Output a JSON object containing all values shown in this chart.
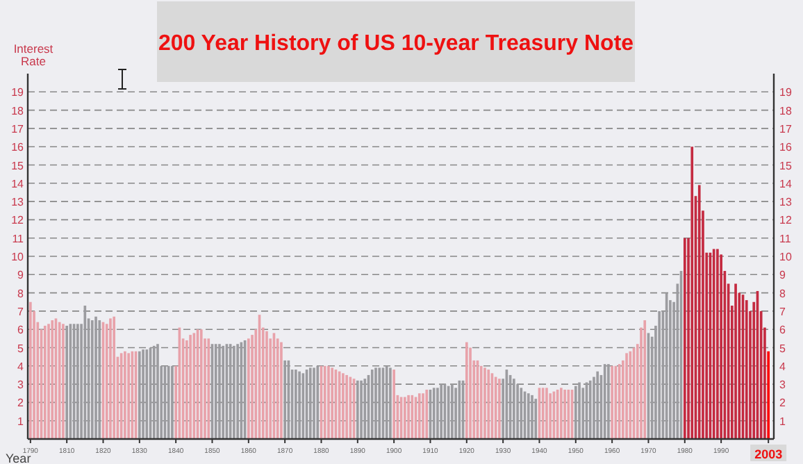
{
  "chart_data": {
    "type": "bar",
    "title": "200 Year History of US 10-year Treasury Note",
    "ylabel": "Interest Rate",
    "xlabel": "Year",
    "categories": [
      "1790",
      null,
      null,
      null,
      null,
      null,
      null,
      null,
      null,
      null,
      "1810",
      null,
      null,
      null,
      null,
      null,
      null,
      null,
      null,
      null,
      "1820",
      null,
      null,
      null,
      null,
      null,
      null,
      null,
      null,
      null,
      "1830",
      null,
      null,
      null,
      null,
      null,
      null,
      null,
      null,
      null,
      "1840",
      null,
      null,
      null,
      null,
      null,
      null,
      null,
      null,
      null,
      "1850",
      null,
      null,
      null,
      null,
      null,
      null,
      null,
      null,
      null,
      "1860",
      null,
      null,
      null,
      null,
      null,
      null,
      null,
      null,
      null,
      "1870",
      null,
      null,
      null,
      null,
      null,
      null,
      null,
      null,
      null,
      "1880",
      null,
      null,
      null,
      null,
      null,
      null,
      null,
      null,
      null,
      "1890",
      null,
      null,
      null,
      null,
      null,
      null,
      null,
      null,
      null,
      "1900",
      null,
      null,
      null,
      null,
      null,
      null,
      null,
      null,
      null,
      "1910",
      null,
      null,
      null,
      null,
      null,
      null,
      null,
      null,
      null,
      "1920",
      null,
      null,
      null,
      null,
      null,
      null,
      null,
      null,
      null,
      "1930",
      null,
      null,
      null,
      null,
      null,
      null,
      null,
      null,
      null,
      "1940",
      null,
      null,
      null,
      null,
      null,
      null,
      null,
      null,
      null,
      "1950",
      null,
      null,
      null,
      null,
      null,
      null,
      null,
      null,
      null,
      "1960",
      null,
      null,
      null,
      null,
      null,
      null,
      null,
      null,
      null,
      "1970",
      null,
      null,
      null,
      null,
      null,
      null,
      null,
      null,
      null,
      "1980",
      null,
      null,
      null,
      null,
      null,
      null,
      null,
      null,
      null,
      "1990",
      null,
      null,
      null,
      null,
      null,
      null,
      null,
      null,
      null,
      null,
      null,
      null,
      "2003"
    ],
    "values": [
      7.5,
      7.0,
      6.4,
      6.0,
      6.2,
      6.3,
      6.5,
      6.6,
      6.4,
      6.3,
      6.2,
      6.3,
      6.3,
      6.3,
      6.3,
      7.3,
      6.6,
      6.5,
      6.7,
      6.5,
      6.4,
      6.3,
      6.6,
      6.7,
      4.5,
      4.7,
      4.8,
      4.7,
      4.8,
      4.8,
      4.8,
      4.9,
      4.9,
      5.0,
      5.1,
      5.2,
      4.0,
      4.0,
      4.0,
      4.0,
      4.0,
      6.1,
      5.5,
      5.4,
      5.7,
      5.8,
      6.0,
      6.0,
      5.5,
      5.5,
      5.2,
      5.2,
      5.2,
      5.1,
      5.2,
      5.2,
      5.1,
      5.2,
      5.3,
      5.4,
      5.5,
      5.7,
      6.0,
      6.8,
      6.1,
      5.9,
      5.5,
      5.8,
      5.5,
      5.3,
      4.3,
      4.3,
      3.8,
      3.8,
      3.7,
      3.6,
      3.8,
      3.9,
      3.9,
      4.0,
      4.0,
      4.0,
      4.0,
      3.9,
      3.8,
      3.7,
      3.6,
      3.5,
      3.4,
      3.3,
      3.2,
      3.2,
      3.3,
      3.5,
      3.8,
      3.9,
      3.9,
      3.9,
      4.0,
      3.9,
      3.8,
      2.4,
      2.3,
      2.3,
      2.4,
      2.4,
      2.3,
      2.5,
      2.5,
      2.7,
      2.7,
      2.8,
      2.8,
      3.0,
      3.0,
      2.9,
      3.0,
      2.8,
      3.2,
      3.2,
      5.3,
      5.0,
      4.3,
      4.3,
      4.0,
      3.9,
      3.8,
      3.6,
      3.4,
      3.3,
      3.3,
      3.8,
      3.5,
      3.3,
      3.0,
      2.8,
      2.6,
      2.5,
      2.4,
      2.2,
      2.8,
      2.8,
      2.8,
      2.5,
      2.6,
      2.7,
      2.8,
      2.7,
      2.7,
      2.7,
      2.9,
      3.1,
      2.8,
      3.1,
      3.2,
      3.4,
      3.7,
      3.5,
      4.1,
      4.1,
      4.0,
      4.0,
      4.1,
      4.3,
      4.7,
      4.8,
      5.0,
      5.2,
      6.1,
      6.5,
      5.8,
      5.6,
      6.2,
      7.0,
      7.0,
      8.0,
      7.6,
      7.5,
      8.5,
      9.2,
      11.0,
      11.0,
      16.0,
      13.3,
      13.9,
      12.5,
      10.2,
      10.2,
      10.4,
      10.4,
      10.1,
      9.2,
      8.5,
      7.3,
      8.5,
      8.0,
      7.9,
      7.6,
      7.0,
      7.5,
      8.1,
      7.0,
      6.1,
      4.8
    ],
    "colors": [
      "#e8a2aa",
      "#e8a2aa",
      "#e8a2aa",
      "#e8a2aa",
      "#e8a2aa",
      "#e8a2aa",
      "#e8a2aa",
      "#e8a2aa",
      "#e8a2aa",
      "#e8a2aa",
      "#9c9ca0",
      "#9c9ca0",
      "#9c9ca0",
      "#9c9ca0",
      "#9c9ca0",
      "#9c9ca0",
      "#9c9ca0",
      "#9c9ca0",
      "#9c9ca0",
      "#9c9ca0",
      "#e8a2aa",
      "#e8a2aa",
      "#e8a2aa",
      "#e8a2aa",
      "#e8a2aa",
      "#e8a2aa",
      "#e8a2aa",
      "#e8a2aa",
      "#e8a2aa",
      "#e8a2aa",
      "#9c9ca0",
      "#9c9ca0",
      "#9c9ca0",
      "#9c9ca0",
      "#9c9ca0",
      "#9c9ca0",
      "#9c9ca0",
      "#9c9ca0",
      "#9c9ca0",
      "#9c9ca0",
      "#e8a2aa",
      "#e8a2aa",
      "#e8a2aa",
      "#e8a2aa",
      "#e8a2aa",
      "#e8a2aa",
      "#e8a2aa",
      "#e8a2aa",
      "#e8a2aa",
      "#e8a2aa",
      "#9c9ca0",
      "#9c9ca0",
      "#9c9ca0",
      "#9c9ca0",
      "#9c9ca0",
      "#9c9ca0",
      "#9c9ca0",
      "#9c9ca0",
      "#9c9ca0",
      "#9c9ca0",
      "#e8a2aa",
      "#e8a2aa",
      "#e8a2aa",
      "#e8a2aa",
      "#e8a2aa",
      "#e8a2aa",
      "#e8a2aa",
      "#e8a2aa",
      "#e8a2aa",
      "#e8a2aa",
      "#9c9ca0",
      "#9c9ca0",
      "#9c9ca0",
      "#9c9ca0",
      "#9c9ca0",
      "#9c9ca0",
      "#9c9ca0",
      "#9c9ca0",
      "#9c9ca0",
      "#9c9ca0",
      "#e8a2aa",
      "#e8a2aa",
      "#e8a2aa",
      "#e8a2aa",
      "#e8a2aa",
      "#e8a2aa",
      "#e8a2aa",
      "#e8a2aa",
      "#e8a2aa",
      "#e8a2aa",
      "#9c9ca0",
      "#9c9ca0",
      "#9c9ca0",
      "#9c9ca0",
      "#9c9ca0",
      "#9c9ca0",
      "#9c9ca0",
      "#9c9ca0",
      "#9c9ca0",
      "#9c9ca0",
      "#e8a2aa",
      "#e8a2aa",
      "#e8a2aa",
      "#e8a2aa",
      "#e8a2aa",
      "#e8a2aa",
      "#e8a2aa",
      "#e8a2aa",
      "#e8a2aa",
      "#e8a2aa",
      "#9c9ca0",
      "#9c9ca0",
      "#9c9ca0",
      "#9c9ca0",
      "#9c9ca0",
      "#9c9ca0",
      "#9c9ca0",
      "#9c9ca0",
      "#9c9ca0",
      "#9c9ca0",
      "#e8a2aa",
      "#e8a2aa",
      "#e8a2aa",
      "#e8a2aa",
      "#e8a2aa",
      "#e8a2aa",
      "#e8a2aa",
      "#e8a2aa",
      "#e8a2aa",
      "#e8a2aa",
      "#9c9ca0",
      "#9c9ca0",
      "#9c9ca0",
      "#9c9ca0",
      "#9c9ca0",
      "#9c9ca0",
      "#9c9ca0",
      "#9c9ca0",
      "#9c9ca0",
      "#9c9ca0",
      "#e8a2aa",
      "#e8a2aa",
      "#e8a2aa",
      "#e8a2aa",
      "#e8a2aa",
      "#e8a2aa",
      "#e8a2aa",
      "#e8a2aa",
      "#e8a2aa",
      "#e8a2aa",
      "#9c9ca0",
      "#9c9ca0",
      "#9c9ca0",
      "#9c9ca0",
      "#9c9ca0",
      "#9c9ca0",
      "#9c9ca0",
      "#9c9ca0",
      "#9c9ca0",
      "#9c9ca0",
      "#e8a2aa",
      "#e8a2aa",
      "#e8a2aa",
      "#e8a2aa",
      "#e8a2aa",
      "#e8a2aa",
      "#e8a2aa",
      "#e8a2aa",
      "#e8a2aa",
      "#e8a2aa",
      "#9c9ca0",
      "#9c9ca0",
      "#9c9ca0",
      "#9c9ca0",
      "#9c9ca0",
      "#9c9ca0",
      "#9c9ca0",
      "#9c9ca0",
      "#9c9ca0",
      "#9c9ca0",
      "#c42a40",
      "#c42a40",
      "#c42a40",
      "#c42a40",
      "#c42a40",
      "#c42a40",
      "#c42a40",
      "#c42a40",
      "#c42a40",
      "#c42a40",
      "#c42a40",
      "#c42a40",
      "#c42a40",
      "#c42a40",
      "#c42a40",
      "#c42a40",
      "#c42a40",
      "#c42a40",
      "#c42a40",
      "#c42a40",
      "#c42a40",
      "#c42a40",
      "#c42a40",
      "#ff0000"
    ],
    "ylim": [
      0,
      20
    ],
    "yticks": [
      1,
      2,
      3,
      4,
      5,
      6,
      7,
      8,
      9,
      10,
      11,
      12,
      13,
      14,
      15,
      16,
      17,
      18,
      19
    ],
    "y2lim": [
      0,
      20
    ],
    "y2ticks": [
      1,
      2,
      3,
      4,
      5,
      6,
      7,
      8,
      9,
      10,
      11,
      12,
      13,
      14,
      15,
      16,
      17,
      18,
      19
    ],
    "grid": "y",
    "line_style": "dashed"
  }
}
